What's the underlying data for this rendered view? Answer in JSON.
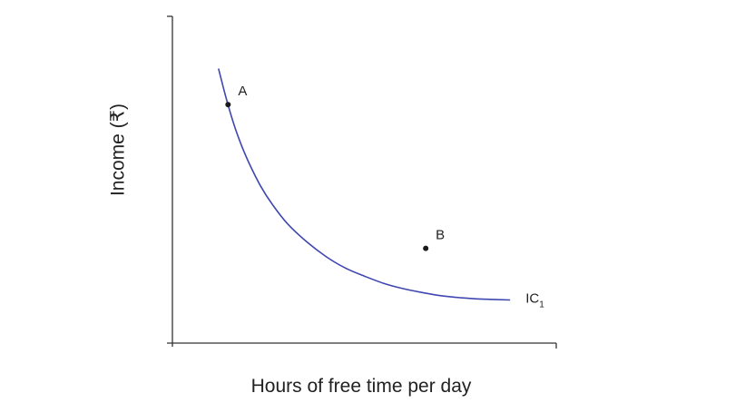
{
  "chart_data": {
    "type": "line",
    "title": "",
    "xlabel": "Hours of free time per day",
    "ylabel": "Income (₹)",
    "xlim": [
      0,
      10
    ],
    "ylim": [
      0,
      10
    ],
    "grid": false,
    "series": [
      {
        "name": "IC",
        "name_subscript": "1",
        "color": "#3f47b0",
        "points": [
          [
            1.2,
            8.4
          ],
          [
            1.4,
            7.5
          ],
          [
            1.6,
            6.7
          ],
          [
            1.8,
            6.05
          ],
          [
            2.0,
            5.5
          ],
          [
            2.3,
            4.8
          ],
          [
            2.6,
            4.25
          ],
          [
            3.0,
            3.65
          ],
          [
            3.5,
            3.1
          ],
          [
            4.0,
            2.65
          ],
          [
            4.5,
            2.3
          ],
          [
            5.0,
            2.05
          ],
          [
            5.5,
            1.83
          ],
          [
            6.0,
            1.67
          ],
          [
            6.5,
            1.55
          ],
          [
            7.0,
            1.45
          ],
          [
            7.5,
            1.39
          ],
          [
            8.0,
            1.35
          ],
          [
            8.8,
            1.32
          ]
        ]
      }
    ],
    "points": [
      {
        "label": "A",
        "x": 1.45,
        "y": 7.3
      },
      {
        "label": "B",
        "x": 6.6,
        "y": 2.9
      }
    ],
    "colors": {
      "axis": "#333333",
      "curve": "#3f47b0",
      "point": "#1a1a1a",
      "text": "#222222"
    }
  }
}
